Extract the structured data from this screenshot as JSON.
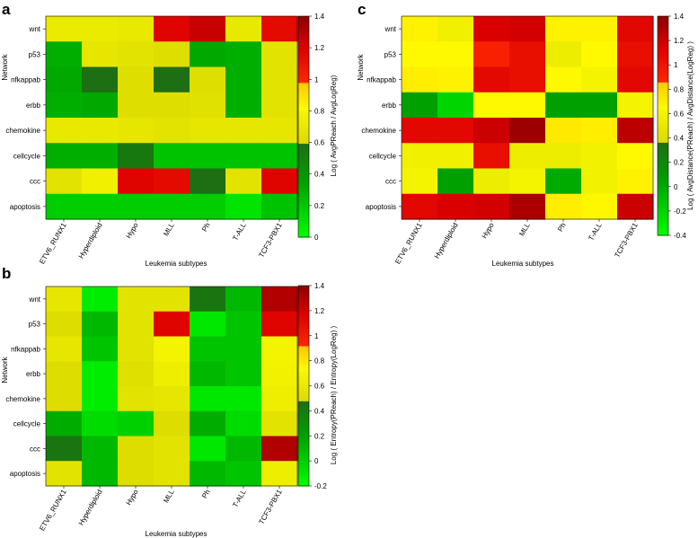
{
  "chart_data": [
    {
      "panel": "a",
      "type": "heatmap",
      "xlabel": "Leukemia subtypes",
      "ylabel": "Network",
      "colorbar_label": "Log ( AvgPReach / AvgLogReg)",
      "categories": [
        "ETV6_RUNX1",
        "Hyperdiploid",
        "Hypo",
        "MLL",
        "Ph",
        "T-ALL",
        "TCF3-PBX1"
      ],
      "networks": [
        "wnt",
        "p53",
        "nfkappab",
        "erbb",
        "chemokine",
        "cellcycle",
        "ccc",
        "apoptosis"
      ],
      "values": [
        [
          0.72,
          0.72,
          0.7,
          1.18,
          1.25,
          0.7,
          1.15
        ],
        [
          0.3,
          0.68,
          0.66,
          0.62,
          0.32,
          0.3,
          0.66
        ],
        [
          0.32,
          0.6,
          0.62,
          0.6,
          0.62,
          0.3,
          0.66
        ],
        [
          0.3,
          0.32,
          0.62,
          0.62,
          0.64,
          0.3,
          0.66
        ],
        [
          0.7,
          0.7,
          0.68,
          0.66,
          0.68,
          0.68,
          0.68
        ],
        [
          0.3,
          0.3,
          0.55,
          0.22,
          0.22,
          0.22,
          0.22
        ],
        [
          0.66,
          0.76,
          1.18,
          1.15,
          0.6,
          0.66,
          1.18
        ],
        [
          0.18,
          0.18,
          0.18,
          0.18,
          0.18,
          0.1,
          0.22
        ]
      ],
      "colorbar_ticks": [
        0,
        0.2,
        0.4,
        0.6,
        0.8,
        1,
        1.2,
        1.4
      ],
      "zlim": [
        0,
        1.4
      ]
    },
    {
      "panel": "b",
      "type": "heatmap",
      "xlabel": "Leukemia subtypes",
      "ylabel": "Network",
      "colorbar_label": "Log ( Entropy(PReach) / Entropy(LogReg) )",
      "categories": [
        "ETV6_RUNX1",
        "Hyperdiploid",
        "Hypo",
        "MLL",
        "Ph",
        "T-ALL",
        "TCF3-PBX1"
      ],
      "networks": [
        "wnt",
        "p53",
        "nfkappab",
        "erbb",
        "chemokine",
        "cellcycle",
        "ccc",
        "apoptosis"
      ],
      "values": [
        [
          0.58,
          -0.12,
          0.55,
          0.55,
          0.45,
          0.1,
          1.3
        ],
        [
          0.5,
          0.1,
          0.55,
          1.15,
          -0.1,
          0.05,
          1.15
        ],
        [
          0.58,
          0.05,
          0.55,
          0.7,
          0.05,
          0.05,
          0.7
        ],
        [
          0.5,
          -0.12,
          0.52,
          0.65,
          0.1,
          0.05,
          0.68
        ],
        [
          0.5,
          -0.12,
          0.55,
          0.58,
          -0.1,
          -0.1,
          0.65
        ],
        [
          0.15,
          -0.05,
          0.0,
          0.5,
          0.15,
          -0.05,
          0.55
        ],
        [
          0.45,
          0.1,
          0.5,
          0.55,
          -0.1,
          0.1,
          1.3
        ],
        [
          0.55,
          0.1,
          0.5,
          0.55,
          0.1,
          0.05,
          0.65
        ]
      ],
      "colorbar_ticks": [
        -0.2,
        0,
        0.2,
        0.4,
        0.6,
        0.8,
        1,
        1.2,
        1.4
      ],
      "zlim": [
        -0.2,
        1.4
      ]
    },
    {
      "panel": "c",
      "type": "heatmap",
      "xlabel": "Leukemia subtypes",
      "ylabel": "Network",
      "colorbar_label": "Log ( AvgDistance(PReach) / AvgDistance(LogReg) )",
      "categories": [
        "ETV6_RUNX1",
        "Hyperdiploid",
        "Hypo",
        "MLL",
        "Ph",
        "T-ALL",
        "TCF3-PBX1"
      ],
      "networks": [
        "wnt",
        "p53",
        "nfkappab",
        "erbb",
        "chemokine",
        "cellcycle",
        "ccc",
        "apoptosis"
      ],
      "values": [
        [
          0.68,
          0.58,
          1.15,
          1.18,
          0.68,
          0.68,
          1.1
        ],
        [
          0.65,
          0.65,
          0.92,
          1.05,
          0.55,
          0.65,
          1.05
        ],
        [
          0.7,
          0.68,
          1.08,
          1.05,
          0.65,
          0.62,
          1.1
        ],
        [
          0.05,
          -0.2,
          0.65,
          0.65,
          0.05,
          0.05,
          0.62
        ],
        [
          1.1,
          1.1,
          1.2,
          1.35,
          0.72,
          0.7,
          1.25
        ],
        [
          0.58,
          0.58,
          1.05,
          0.55,
          0.55,
          0.6,
          0.65
        ],
        [
          0.62,
          0.05,
          0.55,
          0.62,
          0.0,
          0.6,
          0.68
        ],
        [
          1.1,
          1.15,
          1.18,
          1.3,
          0.7,
          0.66,
          1.2
        ]
      ],
      "colorbar_ticks": [
        -0.4,
        -0.2,
        0,
        0.2,
        0.4,
        0.6,
        0.8,
        1,
        1.2,
        1.4
      ],
      "zlim": [
        -0.4,
        1.4
      ]
    }
  ]
}
